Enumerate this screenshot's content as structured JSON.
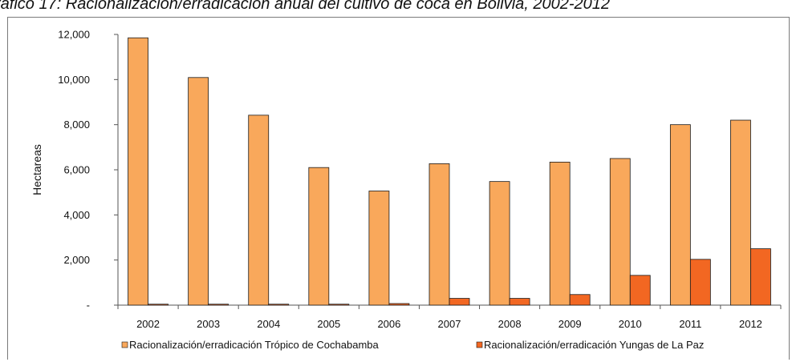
{
  "caption": "ráfico 17: Racionalización/erradicación anual del cultivo de coca en Bolivia, 2002-2012",
  "colors": {
    "tropico": "#F9A85B",
    "yungas": "#F26722",
    "bar_stroke": "#1a1a1a",
    "axis": "#555555"
  },
  "chart_data": {
    "type": "bar",
    "categories": [
      "2002",
      "2003",
      "2004",
      "2005",
      "2006",
      "2007",
      "2008",
      "2009",
      "2010",
      "2011",
      "2012"
    ],
    "series": [
      {
        "name": "Racionalización/erradicación Trópico de Cochabamba",
        "values": [
          11850,
          10090,
          8420,
          6100,
          5060,
          6270,
          5480,
          6340,
          6500,
          8000,
          8200
        ]
      },
      {
        "name": "Racionalización/erradicación Yungas de La Paz",
        "values": [
          40,
          40,
          40,
          40,
          70,
          300,
          300,
          470,
          1320,
          2030,
          2500
        ]
      }
    ],
    "ylabel": "Hectareas",
    "ylim": [
      0,
      12000
    ],
    "yticks": [
      0,
      2000,
      4000,
      6000,
      8000,
      10000,
      12000
    ],
    "ytick_labels": [
      "-",
      "2,000",
      "4,000",
      "6,000",
      "8,000",
      "10,000",
      "12,000"
    ],
    "grid": false,
    "legend_position": "bottom"
  }
}
